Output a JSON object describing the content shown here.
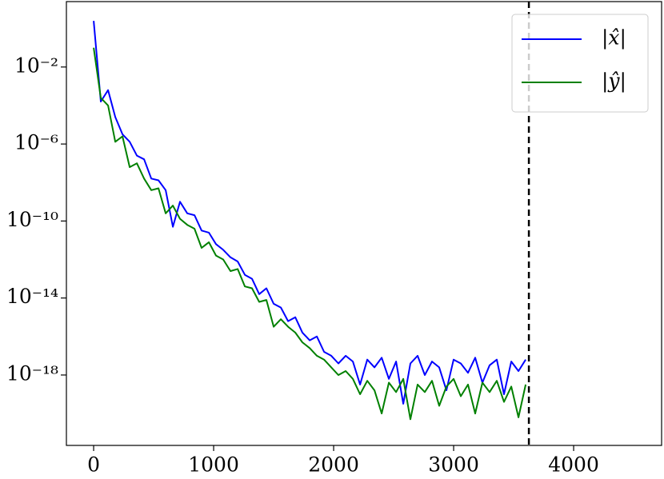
{
  "chart_data": {
    "type": "line",
    "yscale": "log",
    "x": [
      0,
      60,
      120,
      180,
      240,
      300,
      360,
      420,
      480,
      540,
      600,
      660,
      720,
      780,
      840,
      900,
      960,
      1020,
      1080,
      1140,
      1200,
      1260,
      1320,
      1380,
      1440,
      1500,
      1560,
      1620,
      1680,
      1740,
      1800,
      1860,
      1920,
      1980,
      2040,
      2100,
      2160,
      2220,
      2280,
      2340,
      2400,
      2460,
      2520,
      2580,
      2640,
      2700,
      2760,
      2820,
      2880,
      2940,
      3000,
      3060,
      3120,
      3180,
      3240,
      3300,
      3360,
      3420,
      3480,
      3540,
      3600
    ],
    "series": [
      {
        "name": "|x̂|",
        "color": "#0000ff",
        "values": [
          2.5,
          0.00016,
          0.00063,
          2.5e-05,
          3.2e-06,
          1.3e-06,
          2.5e-07,
          1.6e-07,
          1.6e-08,
          1.3e-08,
          4e-09,
          5e-11,
          1e-09,
          2.5e-10,
          2e-10,
          3.2e-11,
          2.5e-11,
          6.3e-12,
          3.2e-12,
          1.3e-12,
          7.9e-13,
          1.6e-13,
          1e-13,
          1.6e-14,
          3.2e-14,
          5e-15,
          3.2e-15,
          6.3e-16,
          1e-15,
          1.6e-16,
          6.3e-17,
          1e-16,
          1.6e-17,
          1e-17,
          4e-18,
          1e-17,
          5e-18,
          3.2e-19,
          6.3e-18,
          2.5e-18,
          7.9e-18,
          6.3e-19,
          5e-18,
          3.2e-20,
          4e-18,
          1e-17,
          1e-18,
          5e-18,
          2.5e-18,
          1.6e-19,
          6.3e-18,
          4e-18,
          1.3e-18,
          7.9e-18,
          4e-19,
          3.2e-18,
          6.3e-18,
          1e-19,
          5e-18,
          1.6e-18,
          6.3e-18
        ]
      },
      {
        "name": "|ŷ|",
        "color": "#008000",
        "values": [
          0.1,
          0.00025,
          0.0001,
          1.3e-06,
          2.5e-06,
          6.3e-08,
          1e-07,
          1.6e-08,
          4e-09,
          5e-09,
          2.5e-10,
          6.3e-10,
          1.3e-10,
          6.3e-11,
          4e-11,
          4e-12,
          7.9e-12,
          1.6e-12,
          1e-12,
          2.5e-13,
          3.2e-13,
          4e-14,
          3.2e-14,
          6.3e-15,
          7.9e-15,
          3.2e-16,
          7.9e-16,
          3.2e-16,
          1.6e-16,
          5e-17,
          2.5e-17,
          1e-17,
          6.3e-18,
          2.5e-18,
          1e-18,
          1.6e-18,
          6.3e-19,
          1e-19,
          5e-19,
          1.6e-19,
          1e-20,
          4e-19,
          1.3e-19,
          6.3e-19,
          5e-21,
          3.2e-19,
          1.3e-19,
          5e-19,
          2.5e-20,
          2.5e-19,
          6.3e-19,
          7.9e-20,
          3.2e-19,
          1e-20,
          4e-19,
          1.3e-19,
          5e-19,
          4e-20,
          2.5e-19,
          6.3e-21,
          3.2e-19
        ]
      }
    ],
    "xlim": [
      -227,
      4733
    ],
    "xticks": [
      0,
      1000,
      2000,
      3000,
      4000
    ],
    "ylim": [
      2.2e-22,
      25
    ],
    "yticks": [
      {
        "value": 1e-18,
        "label": "10⁻¹⁸"
      },
      {
        "value": 1e-14,
        "label": "10⁻¹⁴"
      },
      {
        "value": 1e-10,
        "label": "10⁻¹⁰"
      },
      {
        "value": 1e-06,
        "label": "10⁻⁶"
      },
      {
        "value": 0.01,
        "label": "10⁻²"
      }
    ],
    "vline": {
      "x": 3627,
      "color": "#000000",
      "style": "dashed"
    },
    "legend": "upper right"
  }
}
